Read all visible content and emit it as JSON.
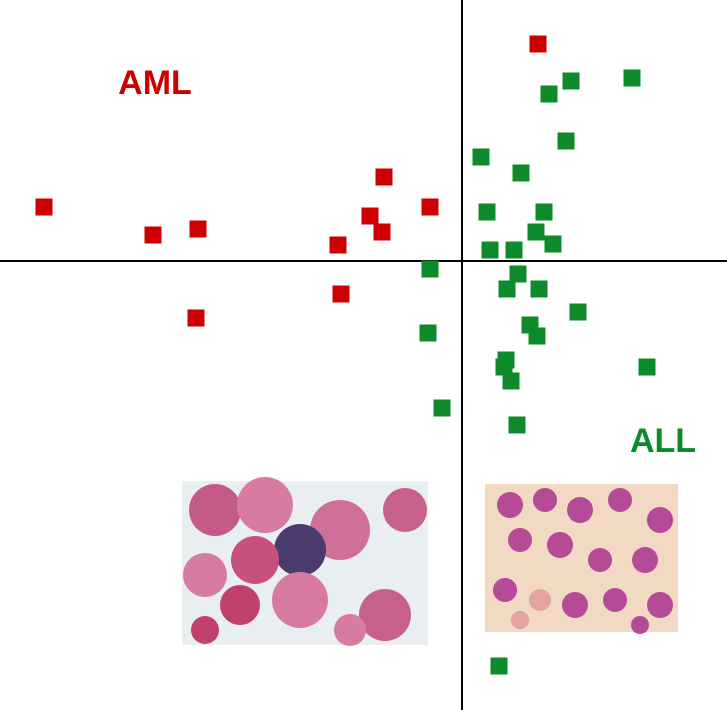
{
  "chart_data": {
    "type": "scatter",
    "xlim": [
      -4.62,
      2.65
    ],
    "ylim": [
      -4.49,
      2.61
    ],
    "series": [
      {
        "name": "AML",
        "color": "#cc0000",
        "x": [
          0.76,
          -4.18,
          -3.09,
          -2.64,
          -0.78,
          -0.92,
          -0.8,
          -0.32,
          -1.24,
          -1.21,
          -2.66
        ],
        "values": [
          2.17,
          0.54,
          0.26,
          0.32,
          0.84,
          0.45,
          0.29,
          0.54,
          0.16,
          -0.33,
          -0.57
        ]
      },
      {
        "name": "ALL",
        "color": "#0d8a2a",
        "x": [
          1.09,
          1.7,
          0.87,
          1.04,
          0.19,
          0.59,
          0.25,
          0.82,
          0.74,
          0.91,
          0.28,
          0.52,
          -0.32,
          0.56,
          0.45,
          0.77,
          1.16,
          0.68,
          0.75,
          -0.34,
          0.44,
          0.42,
          0.49,
          1.85,
          -0.2,
          0.55,
          0.37
        ],
        "values": [
          1.8,
          1.83,
          1.67,
          1.2,
          1.04,
          0.88,
          0.49,
          0.49,
          0.29,
          0.17,
          0.11,
          0.11,
          -0.08,
          -0.13,
          -0.28,
          -0.28,
          -0.51,
          -0.64,
          -0.75,
          -0.72,
          -0.99,
          -1.06,
          -1.2,
          -1.06,
          -1.47,
          -1.64,
          -4.05
        ]
      }
    ]
  }
}
